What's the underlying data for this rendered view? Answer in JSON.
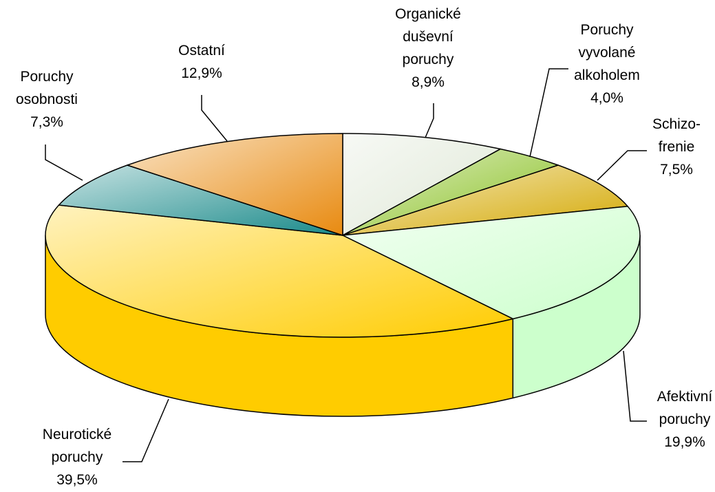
{
  "chart_data": {
    "type": "pie3d",
    "categories": [
      "Organické\nduševní\nporuchy",
      "Poruchy\nvyvolané\nalkoholem",
      "Schizo-\nfrenie",
      "Afektivní\nporuchy",
      "Neurotické\nporuchy",
      "Poruchy\nosobnosti",
      "Ostatní"
    ],
    "values": [
      8.9,
      4.0,
      7.5,
      19.9,
      39.5,
      7.3,
      12.9
    ],
    "value_labels": [
      "8,9%",
      "4,0%",
      "7,5%",
      "19,9%",
      "39,5%",
      "7,3%",
      "12,9%"
    ],
    "colors": [
      "#dfe8d6",
      "#88c020",
      "#d4a800",
      "#ccffcc",
      "#ffcc00",
      "#1a8a8a",
      "#e88a10"
    ]
  }
}
